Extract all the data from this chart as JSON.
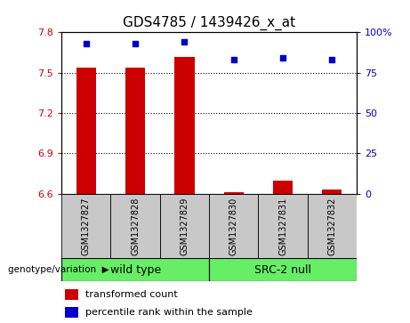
{
  "title": "GDS4785 / 1439426_x_at",
  "samples": [
    "GSM1327827",
    "GSM1327828",
    "GSM1327829",
    "GSM1327830",
    "GSM1327831",
    "GSM1327832"
  ],
  "bar_values": [
    7.54,
    7.54,
    7.62,
    6.61,
    6.7,
    6.63
  ],
  "dot_values": [
    93,
    93,
    94,
    83,
    84,
    83
  ],
  "ylim_left": [
    6.6,
    7.8
  ],
  "ylim_right": [
    0,
    100
  ],
  "yticks_left": [
    6.6,
    6.9,
    7.2,
    7.5,
    7.8
  ],
  "yticks_right": [
    0,
    25,
    50,
    75,
    100
  ],
  "hlines": [
    7.5,
    7.2,
    6.9
  ],
  "bar_color": "#cc0000",
  "dot_color": "#0000cc",
  "bar_bottom": 6.6,
  "bar_width": 0.4,
  "groups": [
    {
      "label": "wild type",
      "span": [
        0,
        3
      ],
      "color": "#66ee66"
    },
    {
      "label": "SRC-2 null",
      "span": [
        3,
        6
      ],
      "color": "#66ee66"
    }
  ],
  "group_label": "genotype/variation",
  "legend_items": [
    {
      "color": "#cc0000",
      "label": "transformed count"
    },
    {
      "color": "#0000cc",
      "label": "percentile rank within the sample"
    }
  ],
  "tick_label_color_left": "#cc0000",
  "tick_label_color_right": "#0000cc",
  "sample_box_color": "#c8c8c8",
  "plot_bg": "#ffffff",
  "title_fontsize": 11,
  "tick_fontsize": 8,
  "sample_fontsize": 7,
  "legend_fontsize": 8,
  "group_fontsize": 9
}
